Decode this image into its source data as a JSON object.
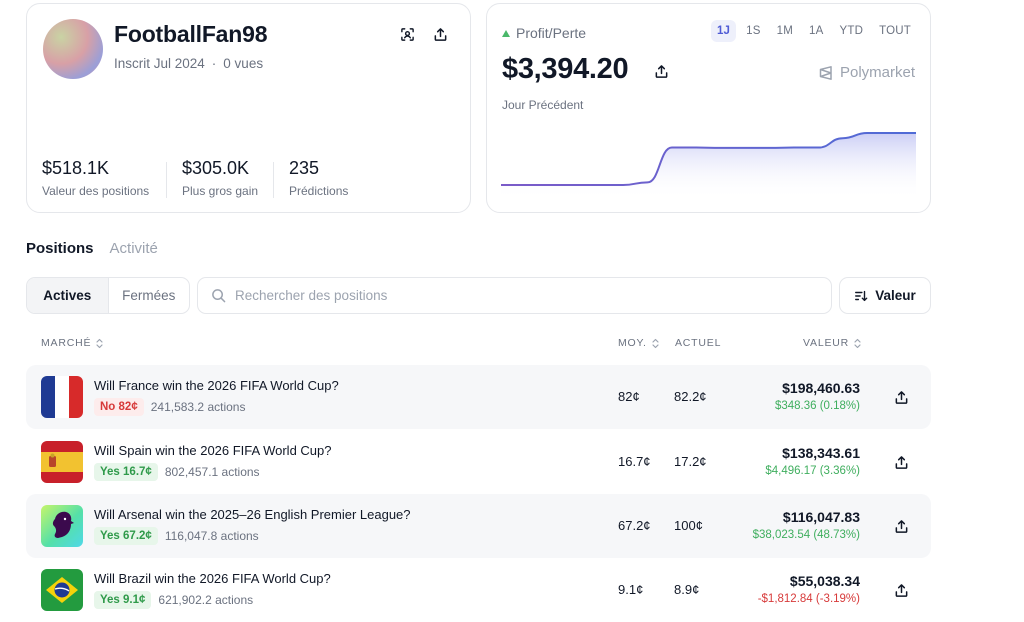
{
  "profile": {
    "username": "FootballFan98",
    "joined": "Inscrit Jul 2024",
    "views": "0 vues",
    "stats": [
      {
        "value": "$518.1K",
        "label": "Valeur des positions"
      },
      {
        "value": "$305.0K",
        "label": "Plus gros gain"
      },
      {
        "value": "235",
        "label": "Prédictions"
      }
    ]
  },
  "pnl": {
    "label": "Profit/Perte",
    "value": "$3,394.20",
    "sub": "Jour Précédent",
    "brand": "Polymarket",
    "ranges": [
      "1J",
      "1S",
      "1M",
      "1A",
      "YTD",
      "TOUT"
    ],
    "active_range": "1J",
    "accent": "#5b62d6"
  },
  "tabs": [
    {
      "label": "Positions"
    },
    {
      "label": "Activité"
    }
  ],
  "filter": {
    "active": "Actives",
    "closed": "Fermées"
  },
  "search": {
    "placeholder": "Rechercher des positions"
  },
  "sort": {
    "label": "Valeur"
  },
  "table": {
    "headers": {
      "market": "MARCHÉ",
      "avg": "MOY.",
      "current": "ACTUEL",
      "value": "VALEUR"
    },
    "rows": [
      {
        "title": "Will France win the 2026 FIFA World Cup?",
        "outcome": "No 82¢",
        "outcome_type": "no",
        "shares": "241,583.2 actions",
        "avg": "82¢",
        "current": "82.2¢",
        "value": "$198,460.63",
        "change": "$348.36 (0.18%)",
        "change_dir": "pos",
        "icon": "france-flag-icon"
      },
      {
        "title": "Will Spain win the 2026 FIFA World Cup?",
        "outcome": "Yes 16.7¢",
        "outcome_type": "yes",
        "shares": "802,457.1 actions",
        "avg": "16.7¢",
        "current": "17.2¢",
        "value": "$138,343.61",
        "change": "$4,496.17 (3.36%)",
        "change_dir": "pos",
        "icon": "spain-flag-icon"
      },
      {
        "title": "Will Arsenal win the 2025–26 English Premier League?",
        "outcome": "Yes 67.2¢",
        "outcome_type": "yes",
        "shares": "116,047.8 actions",
        "avg": "67.2¢",
        "current": "100¢",
        "value": "$116,047.83",
        "change": "$38,023.54 (48.73%)",
        "change_dir": "pos",
        "icon": "premier-league-logo-icon"
      },
      {
        "title": "Will Brazil win the 2026 FIFA World Cup?",
        "outcome": "Yes 9.1¢",
        "outcome_type": "yes",
        "shares": "621,902.2 actions",
        "avg": "9.1¢",
        "current": "8.9¢",
        "value": "$55,038.34",
        "change": "-$1,812.84 (-3.19%)",
        "change_dir": "neg",
        "icon": "brazil-flag-icon"
      }
    ]
  },
  "chart_data": {
    "type": "area",
    "title": "",
    "xlabel": "",
    "ylabel": "",
    "y": [
      0.0,
      0.0,
      0.0,
      0.0,
      0.0,
      0.0,
      0.05,
      0.72,
      0.72,
      0.715,
      0.715,
      0.715,
      0.72,
      0.72,
      0.9,
      1.0,
      1.0,
      1.0
    ],
    "grid": false
  }
}
